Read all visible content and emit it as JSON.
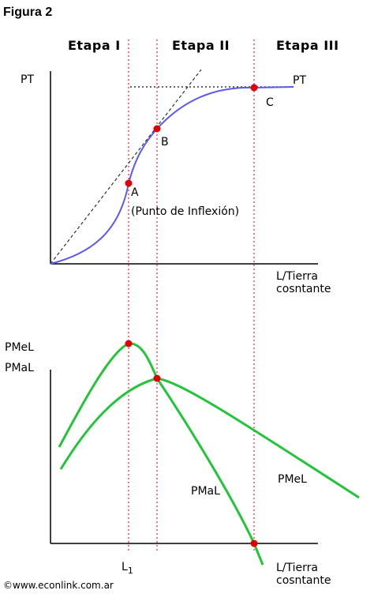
{
  "title": "Figura 2",
  "stages": [
    "Etapa I",
    "Etapa II",
    "Etapa III"
  ],
  "top_chart": {
    "y_label": "PT",
    "x_label_line1": "L/Tierra",
    "x_label_line2": "cosntante",
    "curve_label": "PT",
    "points": [
      {
        "label": "A",
        "note": "(Punto de Inflexión)"
      },
      {
        "label": "B"
      },
      {
        "label": "C"
      }
    ]
  },
  "bottom_chart": {
    "y_label_1": "PMeL",
    "y_label_2": "PMaL",
    "x_label_line1": "L/Tierra",
    "x_label_line2": "cosntante",
    "x_tick": "L",
    "x_tick_sub": "1",
    "curve_labels": {
      "pmal": "PMaL",
      "pmel": "PMeL"
    }
  },
  "footer": "©www.econlink.com.ar",
  "colors": {
    "pt_curve": "#5a5af0",
    "marginal_avg_curves": "#22c43a",
    "guide_lines": "#e03a3a",
    "points": "#e00000",
    "tangent": "#333333"
  },
  "chart_data": [
    {
      "type": "line",
      "title": "",
      "xlabel": "L/Tierra cosntante",
      "ylabel": "PT",
      "series": [
        {
          "name": "PT",
          "shape": "S-shaped total product curve"
        }
      ],
      "annotations": [
        "A (Punto de Inflexión)",
        "B",
        "C"
      ]
    },
    {
      "type": "line",
      "title": "",
      "xlabel": "L/Tierra cosntante",
      "ylabel": "PMeL / PMaL",
      "series": [
        {
          "name": "PMaL",
          "shape": "rises to max at A, falls, crosses zero at C"
        },
        {
          "name": "PMeL",
          "shape": "rises to max at B, then falls"
        }
      ],
      "x_ticks": [
        "L1"
      ]
    }
  ]
}
